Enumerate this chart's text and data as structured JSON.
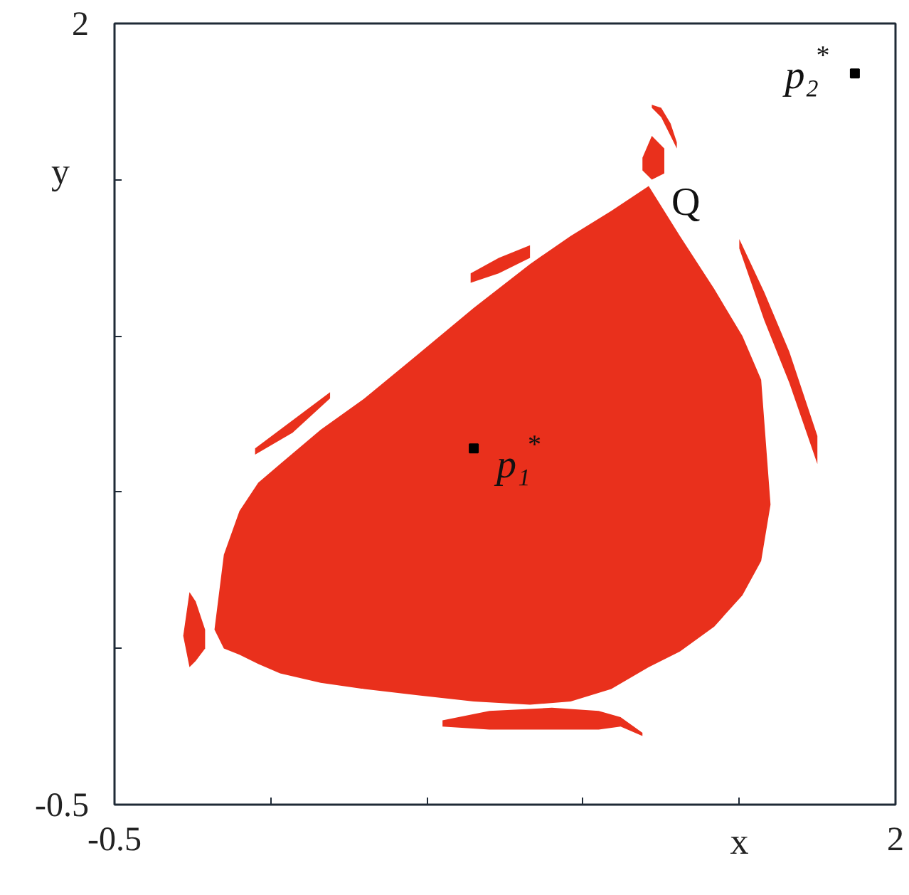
{
  "chart_data": {
    "type": "line",
    "xlabel": "x",
    "ylabel": "y",
    "xlim": [
      -0.5,
      2
    ],
    "ylim": [
      -0.5,
      2
    ],
    "xticks": [
      -0.5,
      {
        "value": 0,
        "label": null
      },
      {
        "value": 0.5,
        "label": null
      },
      {
        "value": 1,
        "label": null
      },
      {
        "value": 1.5,
        "label": null
      },
      2
    ],
    "yticks": [
      -0.5,
      {
        "value": 0,
        "label": null
      },
      {
        "value": 0.5,
        "label": null
      },
      {
        "value": 1,
        "label": null
      },
      {
        "value": 1.5,
        "label": null
      },
      2
    ],
    "series": [
      {
        "color": "#e9301c",
        "x": [
          -0.18,
          -0.15,
          -0.1,
          -0.04,
          0.03,
          0.16,
          0.3,
          0.47,
          0.65,
          0.83,
          0.96,
          1.09,
          1.21,
          1.31,
          1.42,
          1.51,
          1.57,
          1.6
        ],
        "values": [
          null,
          null,
          null,
          null,
          null,
          null,
          null,
          null,
          null,
          null,
          null,
          null,
          null,
          null,
          null,
          null,
          null,
          null
        ],
        "upper": [
          0.06,
          0.3,
          0.44,
          0.53,
          0.59,
          0.7,
          0.8,
          0.94,
          1.09,
          1.23,
          1.32,
          1.4,
          1.48,
          1.32,
          1.15,
          1.0,
          0.86,
          0.46
        ],
        "lower": [
          0.06,
          0.0,
          -0.02,
          -0.05,
          -0.08,
          -0.11,
          -0.13,
          -0.15,
          -0.17,
          -0.18,
          -0.17,
          -0.13,
          -0.06,
          -0.01,
          0.07,
          0.17,
          0.28,
          0.46
        ]
      },
      {
        "color": "#e9301c",
        "x": [
          0.55,
          0.7,
          0.9,
          1.05,
          1.12,
          1.19
        ],
        "values": [
          null,
          null,
          null,
          null,
          null,
          null
        ],
        "upper": [
          -0.23,
          -0.2,
          -0.19,
          -0.2,
          -0.22,
          -0.27
        ],
        "lower": [
          -0.25,
          -0.26,
          -0.26,
          -0.26,
          -0.25,
          -0.28
        ]
      },
      {
        "color": "#e9301c",
        "x": [
          -0.28,
          -0.26,
          -0.24,
          -0.21
        ],
        "values": [
          null,
          null,
          null,
          null
        ],
        "upper": [
          0.04,
          0.18,
          0.15,
          0.06
        ],
        "lower": [
          0.04,
          -0.06,
          -0.04,
          0.0
        ]
      },
      {
        "color": "#e9301c",
        "x": [
          -0.05,
          0.07,
          0.19
        ],
        "values": [
          null,
          null,
          null
        ],
        "upper": [
          0.64,
          0.73,
          0.82
        ],
        "lower": [
          0.62,
          0.69,
          0.8
        ]
      },
      {
        "color": "#e9301c",
        "x": [
          0.64,
          0.73,
          0.83
        ],
        "values": [
          null,
          null,
          null
        ],
        "upper": [
          1.2,
          1.25,
          1.29
        ],
        "lower": [
          1.17,
          1.2,
          1.25
        ]
      },
      {
        "color": "#e9301c",
        "x": [
          1.19,
          1.22,
          1.26
        ],
        "values": [
          null,
          null,
          null
        ],
        "upper": [
          1.57,
          1.64,
          1.6
        ],
        "lower": [
          1.53,
          1.5,
          1.52
        ]
      },
      {
        "color": "#e9301c",
        "x": [
          1.22,
          1.25,
          1.28,
          1.3
        ],
        "values": [
          null,
          null,
          null,
          null
        ],
        "upper": [
          1.74,
          1.73,
          1.68,
          1.62
        ],
        "lower": [
          1.73,
          1.7,
          1.64,
          1.6
        ]
      },
      {
        "color": "#e9301c",
        "x": [
          1.5,
          1.58,
          1.66,
          1.75
        ],
        "values": [
          null,
          null,
          null,
          null
        ],
        "upper": [
          1.31,
          1.14,
          0.95,
          0.68
        ],
        "lower": [
          1.28,
          1.05,
          0.85,
          0.59
        ]
      },
      {
        "type": "scatter",
        "color": "#000000",
        "marker": "square",
        "x": [
          0.65,
          1.87
        ],
        "values": [
          0.64,
          1.84
        ]
      }
    ],
    "annotations": [
      {
        "text": "p₁$^{*}$",
        "x": 0.65,
        "y": 0.64
      },
      {
        "text": "p₂$^{*}$",
        "x": 1.87,
        "y": 1.84
      },
      {
        "text": "Q",
        "x": 1.21,
        "y": 1.48
      }
    ],
    "grid": false
  }
}
